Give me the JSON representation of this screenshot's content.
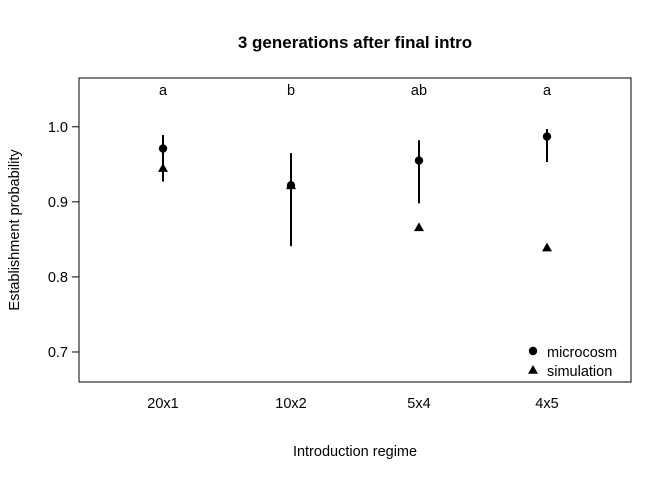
{
  "chart_data": {
    "type": "scatter",
    "title": "3 generations after final intro",
    "xlabel": "Introduction regime",
    "ylabel": "Establishment probability",
    "categories": [
      "20x1",
      "10x2",
      "5x4",
      "4x5"
    ],
    "ylim": [
      0.66,
      1.065
    ],
    "yticks": [
      0.7,
      0.8,
      0.9,
      1.0
    ],
    "ytick_labels": [
      "0.7",
      "0.8",
      "0.9",
      "1.0"
    ],
    "grid": false,
    "legend_position": "bottom-right",
    "significance_letters": [
      "a",
      "b",
      "ab",
      "a"
    ],
    "series": [
      {
        "name": "microcosm",
        "marker": "circle",
        "values": [
          0.971,
          0.922,
          0.955,
          0.987
        ],
        "ci_low": [
          0.927,
          0.841,
          0.898,
          0.953
        ],
        "ci_high": [
          0.989,
          0.965,
          0.982,
          0.997
        ]
      },
      {
        "name": "simulation",
        "marker": "triangle",
        "values": [
          0.945,
          0.922,
          0.866,
          0.839
        ]
      }
    ]
  }
}
